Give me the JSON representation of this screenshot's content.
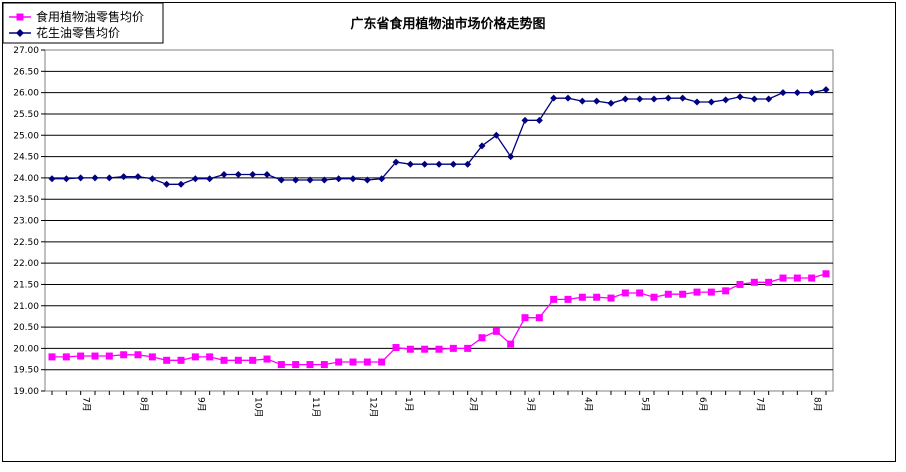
{
  "chart_data": {
    "type": "line",
    "title": "广东省食用植物油市场价格走势图",
    "xlabel": "",
    "ylabel": "",
    "ylim": [
      19.0,
      27.0
    ],
    "y_ticks": [
      "19.00",
      "19.50",
      "20.00",
      "20.50",
      "21.00",
      "21.50",
      "22.00",
      "22.50",
      "23.00",
      "23.50",
      "24.00",
      "24.50",
      "25.00",
      "25.50",
      "26.00",
      "26.50",
      "27.00"
    ],
    "grid": true,
    "legend_position": "top-left",
    "x_tick_labels": [
      "7月",
      "8月",
      "9月",
      "10月",
      "11月",
      "12月",
      "1月",
      "2月",
      "3月",
      "4月",
      "5月",
      "6月",
      "7月",
      "8月"
    ],
    "x_tick_positions": [
      2,
      6,
      10,
      14,
      18,
      22,
      24.5,
      29,
      33,
      37,
      41,
      45,
      49,
      53
    ],
    "series": [
      {
        "name": "食用植物油零售均价",
        "color": "#ff00ff",
        "marker": "square",
        "values": [
          19.8,
          19.8,
          19.82,
          19.82,
          19.82,
          19.85,
          19.85,
          19.8,
          19.72,
          19.72,
          19.8,
          19.8,
          19.72,
          19.72,
          19.72,
          19.75,
          19.62,
          19.62,
          19.62,
          19.62,
          19.68,
          19.68,
          19.68,
          19.68,
          20.02,
          19.98,
          19.98,
          19.98,
          20.0,
          20.0,
          20.25,
          20.4,
          20.1,
          20.72,
          20.72,
          21.15,
          21.15,
          21.2,
          21.2,
          21.18,
          21.3,
          21.3,
          21.2,
          21.27,
          21.27,
          21.32,
          21.32,
          21.35,
          21.5,
          21.55,
          21.55,
          21.65,
          21.65,
          21.65,
          21.75
        ]
      },
      {
        "name": "花生油零售均价",
        "color": "#000080",
        "marker": "diamond",
        "values": [
          23.98,
          23.98,
          24.0,
          24.0,
          24.0,
          24.03,
          24.03,
          23.98,
          23.85,
          23.85,
          23.98,
          23.98,
          24.08,
          24.08,
          24.08,
          24.08,
          23.95,
          23.95,
          23.95,
          23.95,
          23.98,
          23.98,
          23.95,
          23.98,
          24.37,
          24.32,
          24.32,
          24.32,
          24.32,
          24.32,
          24.75,
          25.0,
          24.5,
          25.35,
          25.35,
          25.87,
          25.87,
          25.8,
          25.8,
          25.75,
          25.85,
          25.85,
          25.85,
          25.87,
          25.87,
          25.78,
          25.78,
          25.83,
          25.9,
          25.85,
          25.85,
          26.0,
          26.0,
          26.0,
          26.07
        ]
      }
    ]
  }
}
